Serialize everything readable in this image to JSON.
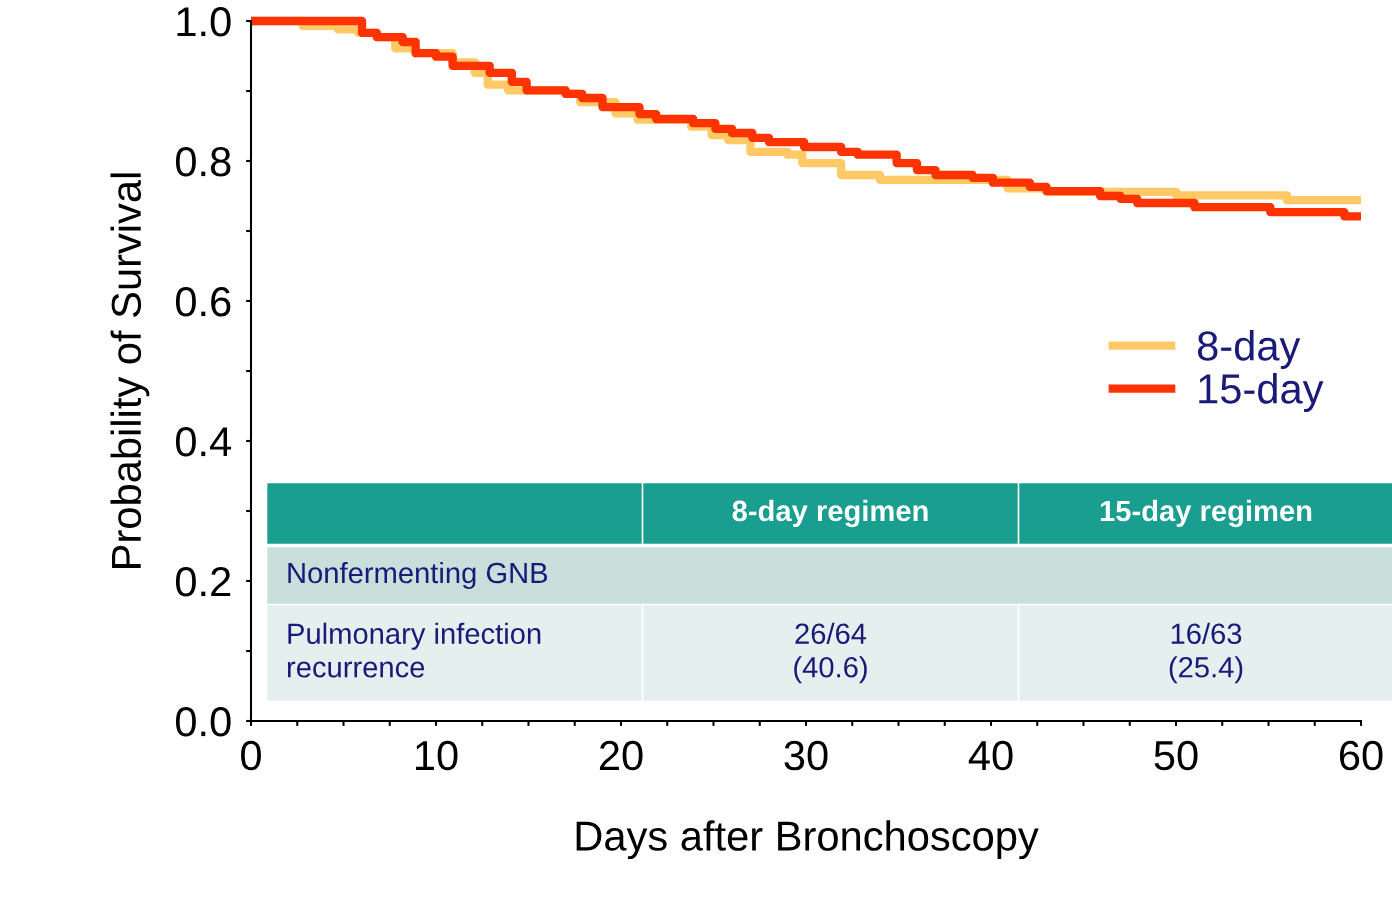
{
  "chart_data": {
    "type": "step",
    "xlabel": "Days after Bronchoscopy",
    "ylabel": "Probability of Survival",
    "xlim": [
      0,
      60
    ],
    "ylim": [
      0,
      1.0
    ],
    "xticks": [
      0,
      {
        "value": 2.5,
        "label": null
      },
      {
        "value": 5,
        "label": null
      },
      {
        "value": 7.5,
        "label": null
      },
      10,
      {
        "value": 12.5,
        "label": null
      },
      {
        "value": 15,
        "label": null
      },
      {
        "value": 17.5,
        "label": null
      },
      20,
      {
        "value": 22.5,
        "label": null
      },
      {
        "value": 25,
        "label": null
      },
      {
        "value": 27.5,
        "label": null
      },
      30,
      {
        "value": 32.5,
        "label": null
      },
      {
        "value": 35,
        "label": null
      },
      {
        "value": 37.5,
        "label": null
      },
      40,
      {
        "value": 42.5,
        "label": null
      },
      {
        "value": 45,
        "label": null
      },
      {
        "value": 47.5,
        "label": null
      },
      50,
      {
        "value": 52.5,
        "label": null
      },
      {
        "value": 55,
        "label": null
      },
      {
        "value": 57.5,
        "label": null
      },
      60
    ],
    "yticks": [
      {
        "value": 0,
        "label": "0.0"
      },
      {
        "value": 0.1,
        "label": null
      },
      0.2,
      {
        "value": 0.3,
        "label": null
      },
      0.4,
      {
        "value": 0.5,
        "label": null
      },
      0.6,
      {
        "value": 0.7,
        "label": null
      },
      0.8,
      {
        "value": 0.9,
        "label": null
      },
      {
        "value": 1.0,
        "label": "1.0"
      }
    ],
    "grid": false,
    "legend": "center right",
    "series": [
      {
        "name": "8-day",
        "color": "#ffc966",
        "x": [
          0,
          2.8,
          4.7,
          5.8,
          6.8,
          7.8,
          8.9,
          10.9,
          12.1,
          12.8,
          13.9,
          17.0,
          17.8,
          19.7,
          20.9,
          23.8,
          24.9,
          25.8,
          27.0,
          29.0,
          29.8,
          31.9,
          34.0,
          40.9,
          43.0,
          50.0,
          56.0,
          60
        ],
        "values": [
          1.0,
          0.993,
          0.988,
          0.983,
          0.977,
          0.961,
          0.954,
          0.941,
          0.926,
          0.909,
          0.901,
          0.896,
          0.884,
          0.868,
          0.859,
          0.849,
          0.837,
          0.83,
          0.813,
          0.809,
          0.797,
          0.78,
          0.773,
          0.761,
          0.756,
          0.751,
          0.744,
          0.744
        ]
      },
      {
        "name": "15-day",
        "color": "#ff3300",
        "x": [
          0,
          6.0,
          6.8,
          8.2,
          8.9,
          10.0,
          10.9,
          12.9,
          14.1,
          14.9,
          17.0,
          17.9,
          19.0,
          21.0,
          21.9,
          23.9,
          25.1,
          26.0,
          27.1,
          28.0,
          29.9,
          31.9,
          32.8,
          34.9,
          36.0,
          37.0,
          39.0,
          40.1,
          42.1,
          43.0,
          45.9,
          47.0,
          47.9,
          51.0,
          55.1,
          59.1,
          60
        ],
        "values": [
          1.0,
          0.983,
          0.977,
          0.97,
          0.954,
          0.949,
          0.936,
          0.926,
          0.913,
          0.901,
          0.896,
          0.89,
          0.877,
          0.867,
          0.86,
          0.854,
          0.846,
          0.84,
          0.833,
          0.827,
          0.82,
          0.813,
          0.809,
          0.797,
          0.787,
          0.78,
          0.776,
          0.769,
          0.763,
          0.757,
          0.75,
          0.746,
          0.74,
          0.734,
          0.727,
          0.721,
          0.721
        ]
      }
    ],
    "annotations": [
      "8-day regimen",
      "15-day regimen",
      "Nonfermenting GNB",
      "Pulmonary infection\nrecurrence",
      "26/64\n(40.6)",
      "16/63\n(25.4)"
    ]
  }
}
